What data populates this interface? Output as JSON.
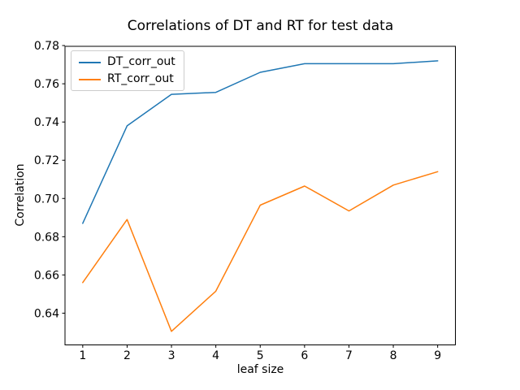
{
  "figure": {
    "background_color": "#ffffff",
    "axis_color": "#000000",
    "legend_border_color": "#cccccc"
  },
  "chart_data": {
    "type": "line",
    "title": "Correlations of DT and RT for test data",
    "xlabel": "leaf size",
    "ylabel": "Correlation",
    "x": [
      1,
      2,
      3,
      4,
      5,
      6,
      7,
      8,
      9
    ],
    "series": [
      {
        "name": "DT_corr_out",
        "color": "#1f77b4",
        "values": [
          0.687,
          0.738,
          0.7545,
          0.7555,
          0.766,
          0.7705,
          0.7705,
          0.7705,
          0.772
        ]
      },
      {
        "name": "RT_corr_out",
        "color": "#ff7f0e",
        "values": [
          0.656,
          0.689,
          0.6305,
          0.6515,
          0.6965,
          0.7065,
          0.6935,
          0.707,
          0.714
        ]
      }
    ],
    "x_ticks": [
      "1",
      "2",
      "3",
      "4",
      "5",
      "6",
      "7",
      "8",
      "9"
    ],
    "y_ticks": [
      "0.64",
      "0.66",
      "0.68",
      "0.70",
      "0.72",
      "0.74",
      "0.76",
      "0.78"
    ],
    "xlim": [
      0.6,
      9.4
    ],
    "ylim": [
      0.6234,
      0.7796
    ],
    "grid": false,
    "legend_position": "upper left"
  }
}
